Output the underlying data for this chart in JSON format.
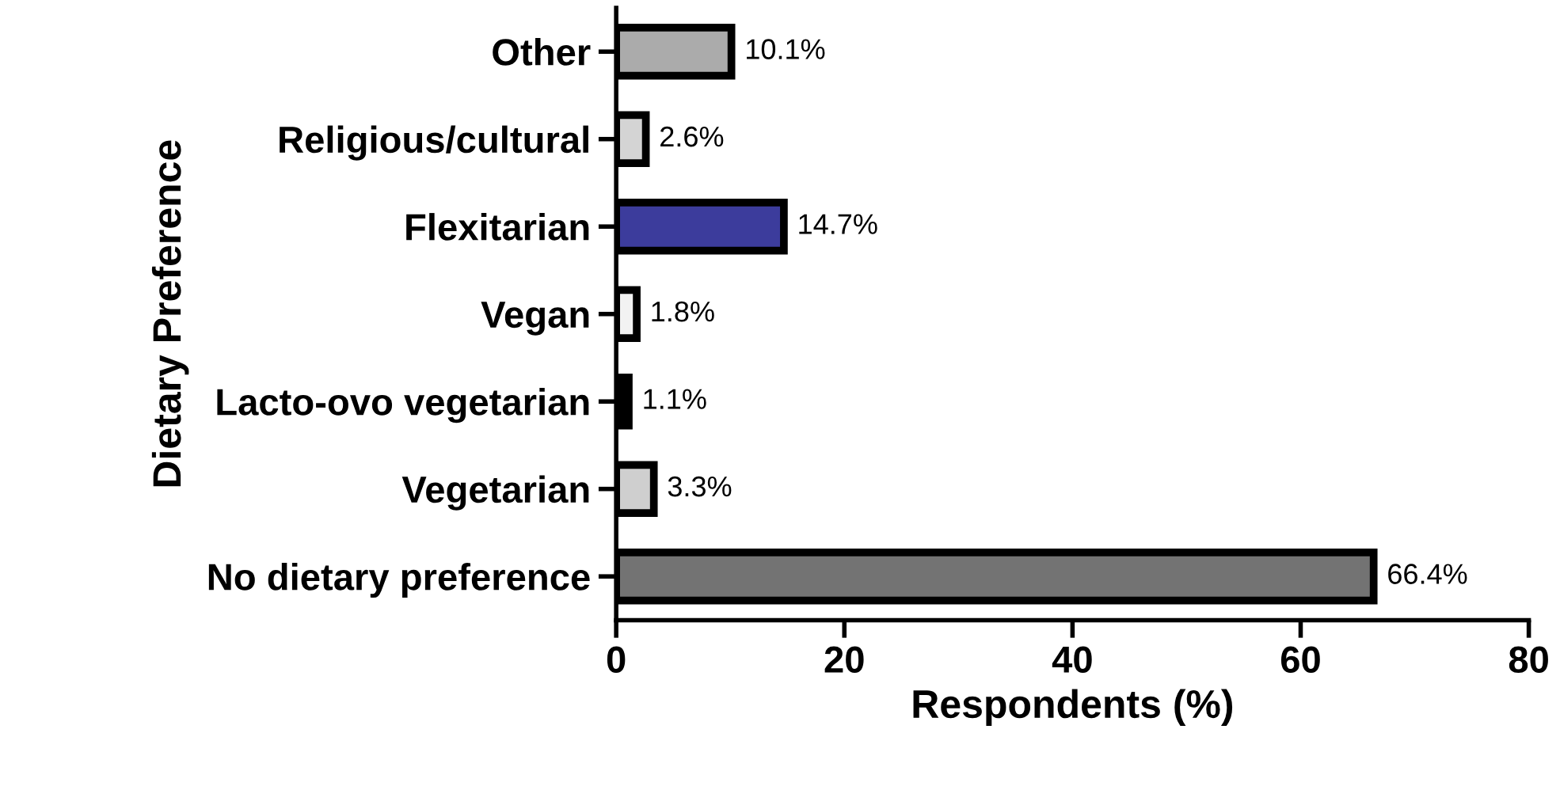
{
  "chart_data": {
    "type": "bar",
    "orientation": "horizontal",
    "xlabel": "Respondents (%)",
    "ylabel": "Dietary Preference",
    "categories": [
      "Other",
      "Religious/cultural",
      "Flexitarian",
      "Vegan",
      "Lacto-ovo vegetarian",
      "Vegetarian",
      "No dietary preference"
    ],
    "values": [
      10.1,
      2.6,
      14.7,
      1.8,
      1.1,
      3.3,
      66.4
    ],
    "colors": [
      "#ababab",
      "#d4d4d4",
      "#3c3c9c",
      "#f2f2f2",
      "#000000",
      "#cfcfcf",
      "#737373"
    ],
    "value_labels": [
      "10.1%",
      "2.6%",
      "14.7%",
      "1.8%",
      "1.1%",
      "3.3%",
      "66.4%"
    ],
    "xlim": [
      0,
      80
    ],
    "xticks": [
      0,
      20,
      40,
      60,
      80
    ],
    "grid": false,
    "legend": false
  }
}
